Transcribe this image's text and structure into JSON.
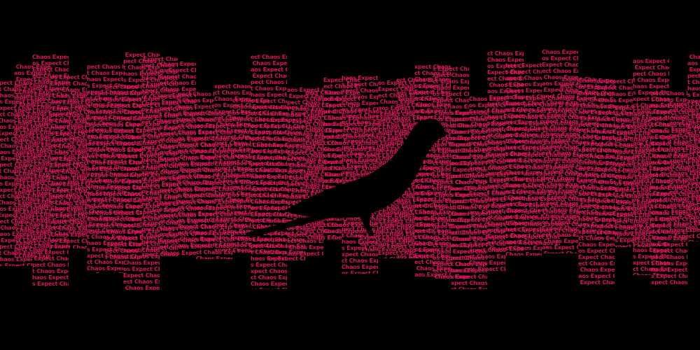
{
  "artwork": {
    "phrase": "Expect Chaos",
    "text_color": "#d4145a",
    "background_color": "#000000",
    "silhouette_color": "#000000",
    "silhouette_subject": "bird-on-branch"
  }
}
